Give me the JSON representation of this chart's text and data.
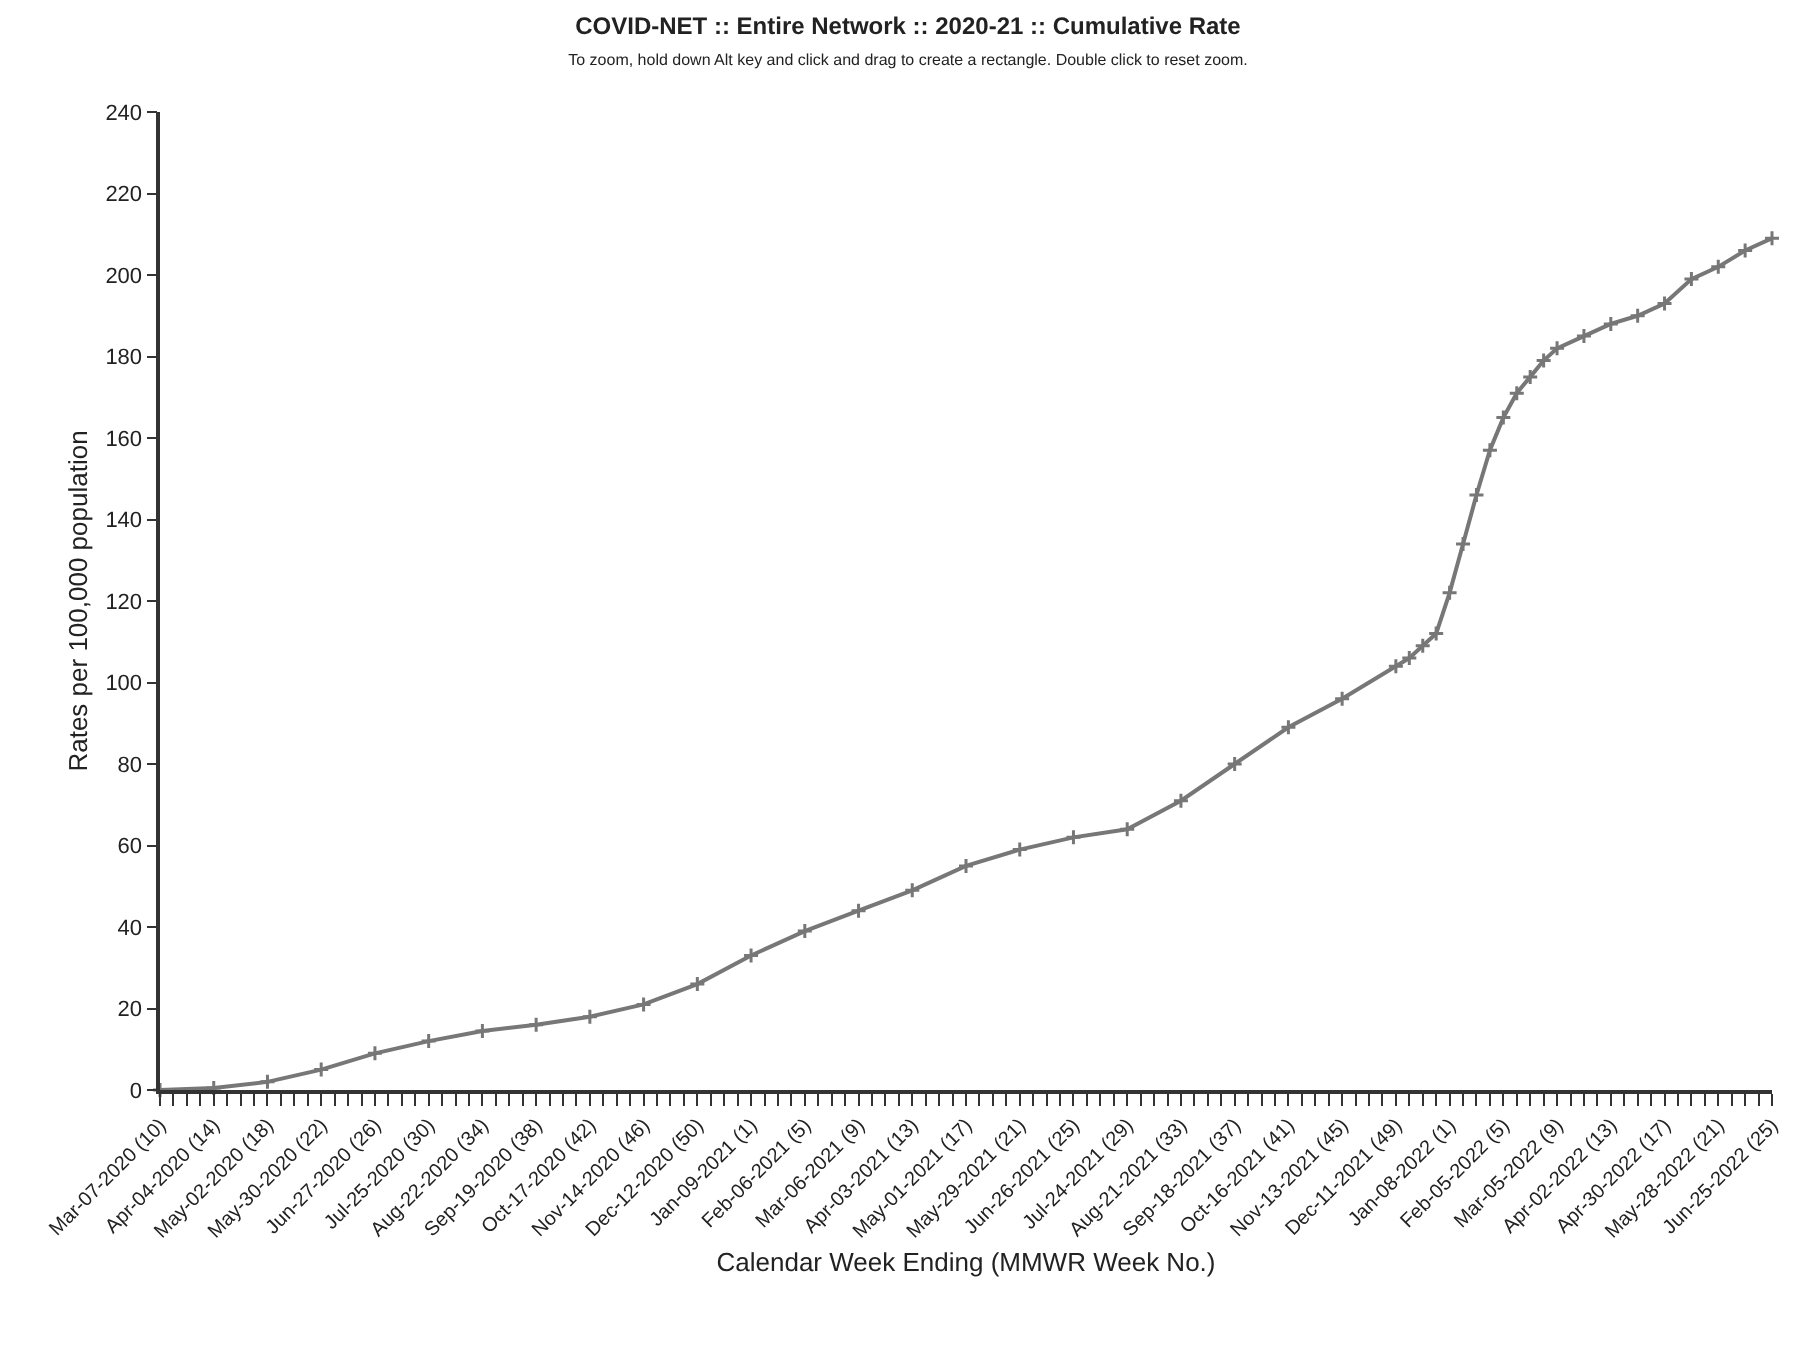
{
  "chart_data": {
    "type": "line",
    "title": "COVID-NET :: Entire Network :: 2020-21 :: Cumulative Rate",
    "subtitle": "To zoom, hold down Alt key and click and drag to create a rectangle. Double click to reset zoom.",
    "xlabel": "Calendar Week Ending (MMWR Week No.)",
    "ylabel": "Rates per 100,000 population",
    "x": [
      "2020-03-07",
      "2020-04-04",
      "2020-05-02",
      "2020-05-30",
      "2020-06-27",
      "2020-07-25",
      "2020-08-22",
      "2020-09-19",
      "2020-10-17",
      "2020-11-14",
      "2020-12-12",
      "2021-01-09",
      "2021-02-06",
      "2021-03-06",
      "2021-04-03",
      "2021-05-01",
      "2021-05-29",
      "2021-06-26",
      "2021-07-24",
      "2021-08-21",
      "2021-09-18",
      "2021-10-16",
      "2021-11-13",
      "2021-12-11",
      "2021-12-18",
      "2021-12-25",
      "2022-01-01",
      "2022-01-08",
      "2022-01-15",
      "2022-01-22",
      "2022-01-29",
      "2022-02-05",
      "2022-02-12",
      "2022-02-19",
      "2022-02-26",
      "2022-03-05",
      "2022-03-19",
      "2022-04-02",
      "2022-04-16",
      "2022-04-30",
      "2022-05-14",
      "2022-05-28",
      "2022-06-11",
      "2022-06-25"
    ],
    "values": [
      0,
      0.5,
      2,
      5,
      9,
      12,
      14.5,
      16,
      18,
      21,
      26,
      33,
      39,
      44,
      49,
      55,
      59,
      62,
      64,
      71,
      80,
      89,
      96,
      104,
      106,
      109,
      112,
      122,
      134,
      146,
      157,
      165,
      171,
      175,
      179,
      182,
      185,
      188,
      190,
      193,
      199,
      202,
      206,
      209
    ],
    "color": "#777777",
    "marker": "cross",
    "line_style": "solid",
    "grid": false,
    "xlim": [
      "2020-03-07",
      "2022-06-25"
    ],
    "ylim": [
      0,
      240
    ],
    "yticks": [
      0,
      20,
      40,
      60,
      80,
      100,
      120,
      140,
      160,
      180,
      200,
      220,
      240
    ],
    "xticks": [
      {
        "value": "2020-03-07",
        "label": "Mar-07-2020 (10)"
      },
      {
        "value": "2020-04-04",
        "label": "Apr-04-2020 (14)"
      },
      {
        "value": "2020-05-02",
        "label": "May-02-2020 (18)"
      },
      {
        "value": "2020-05-30",
        "label": "May-30-2020 (22)"
      },
      {
        "value": "2020-06-27",
        "label": "Jun-27-2020 (26)"
      },
      {
        "value": "2020-07-25",
        "label": "Jul-25-2020 (30)"
      },
      {
        "value": "2020-08-22",
        "label": "Aug-22-2020 (34)"
      },
      {
        "value": "2020-09-19",
        "label": "Sep-19-2020 (38)"
      },
      {
        "value": "2020-10-17",
        "label": "Oct-17-2020 (42)"
      },
      {
        "value": "2020-11-14",
        "label": "Nov-14-2020 (46)"
      },
      {
        "value": "2020-12-12",
        "label": "Dec-12-2020 (50)"
      },
      {
        "value": "2021-01-09",
        "label": "Jan-09-2021 (1)"
      },
      {
        "value": "2021-02-06",
        "label": "Feb-06-2021 (5)"
      },
      {
        "value": "2021-03-06",
        "label": "Mar-06-2021 (9)"
      },
      {
        "value": "2021-04-03",
        "label": "Apr-03-2021 (13)"
      },
      {
        "value": "2021-05-01",
        "label": "May-01-2021 (17)"
      },
      {
        "value": "2021-05-29",
        "label": "May-29-2021 (21)"
      },
      {
        "value": "2021-06-26",
        "label": "Jun-26-2021 (25)"
      },
      {
        "value": "2021-07-24",
        "label": "Jul-24-2021 (29)"
      },
      {
        "value": "2021-08-21",
        "label": "Aug-21-2021 (33)"
      },
      {
        "value": "2021-09-18",
        "label": "Sep-18-2021 (37)"
      },
      {
        "value": "2021-10-16",
        "label": "Oct-16-2021 (41)"
      },
      {
        "value": "2021-11-13",
        "label": "Nov-13-2021 (45)"
      },
      {
        "value": "2021-12-11",
        "label": "Dec-11-2021 (49)"
      },
      {
        "value": "2022-01-08",
        "label": "Jan-08-2022 (1)"
      },
      {
        "value": "2022-02-05",
        "label": "Feb-05-2022 (5)"
      },
      {
        "value": "2022-03-05",
        "label": "Mar-05-2022 (9)"
      },
      {
        "value": "2022-04-02",
        "label": "Apr-02-2022 (13)"
      },
      {
        "value": "2022-04-30",
        "label": "Apr-30-2022 (17)"
      },
      {
        "value": "2022-05-28",
        "label": "May-28-2022 (21)"
      },
      {
        "value": "2022-06-25",
        "label": "Jun-25-2022 (25)"
      }
    ]
  }
}
